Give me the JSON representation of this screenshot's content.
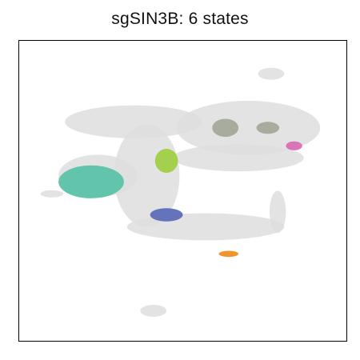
{
  "chart_data": {
    "type": "scatter",
    "title": "sgSIN3B: 6 states",
    "xlabel": "",
    "ylabel": "",
    "grid": false,
    "axis_ticks": false,
    "background_color": "#dedede",
    "background_clusters": [
      {
        "name": "top-center-ring",
        "cx": 0.77,
        "cy": 0.89,
        "rx": 0.04,
        "ry": 0.02
      },
      {
        "name": "upper-left-band",
        "cx": 0.35,
        "cy": 0.73,
        "rx": 0.21,
        "ry": 0.055
      },
      {
        "name": "upper-right-arc",
        "cx": 0.7,
        "cy": 0.71,
        "rx": 0.22,
        "ry": 0.09
      },
      {
        "name": "right-lower-arc",
        "cx": 0.67,
        "cy": 0.61,
        "rx": 0.2,
        "ry": 0.045
      },
      {
        "name": "center-diagonal",
        "cx": 0.39,
        "cy": 0.55,
        "rx": 0.1,
        "ry": 0.17
      },
      {
        "name": "left-mass",
        "cx": 0.24,
        "cy": 0.55,
        "rx": 0.12,
        "ry": 0.07
      },
      {
        "name": "left-streak",
        "cx": 0.1,
        "cy": 0.49,
        "rx": 0.035,
        "ry": 0.012
      },
      {
        "name": "center-lower-band",
        "cx": 0.57,
        "cy": 0.38,
        "rx": 0.24,
        "ry": 0.045
      },
      {
        "name": "lower-right-arm",
        "cx": 0.79,
        "cy": 0.43,
        "rx": 0.025,
        "ry": 0.07
      },
      {
        "name": "bottom-blob",
        "cx": 0.41,
        "cy": 0.1,
        "rx": 0.04,
        "ry": 0.02
      }
    ],
    "states": [
      {
        "color": "#5bc2a8",
        "cx": 0.22,
        "cy": 0.53,
        "rx": 0.1,
        "ry": 0.055
      },
      {
        "color": "#9fcf45",
        "cx": 0.45,
        "cy": 0.6,
        "rx": 0.035,
        "ry": 0.04
      },
      {
        "color": "#5e6db7",
        "cx": 0.45,
        "cy": 0.42,
        "rx": 0.05,
        "ry": 0.022
      },
      {
        "color": "#a4a998",
        "cx": 0.63,
        "cy": 0.71,
        "rx": 0.04,
        "ry": 0.03
      },
      {
        "color": "#a4a998",
        "cx": 0.76,
        "cy": 0.71,
        "rx": 0.035,
        "ry": 0.02
      },
      {
        "color": "#d96fb7",
        "cx": 0.84,
        "cy": 0.65,
        "rx": 0.025,
        "ry": 0.015
      },
      {
        "color": "#ee8f1d",
        "cx": 0.64,
        "cy": 0.29,
        "rx": 0.03,
        "ry": 0.01
      }
    ]
  }
}
